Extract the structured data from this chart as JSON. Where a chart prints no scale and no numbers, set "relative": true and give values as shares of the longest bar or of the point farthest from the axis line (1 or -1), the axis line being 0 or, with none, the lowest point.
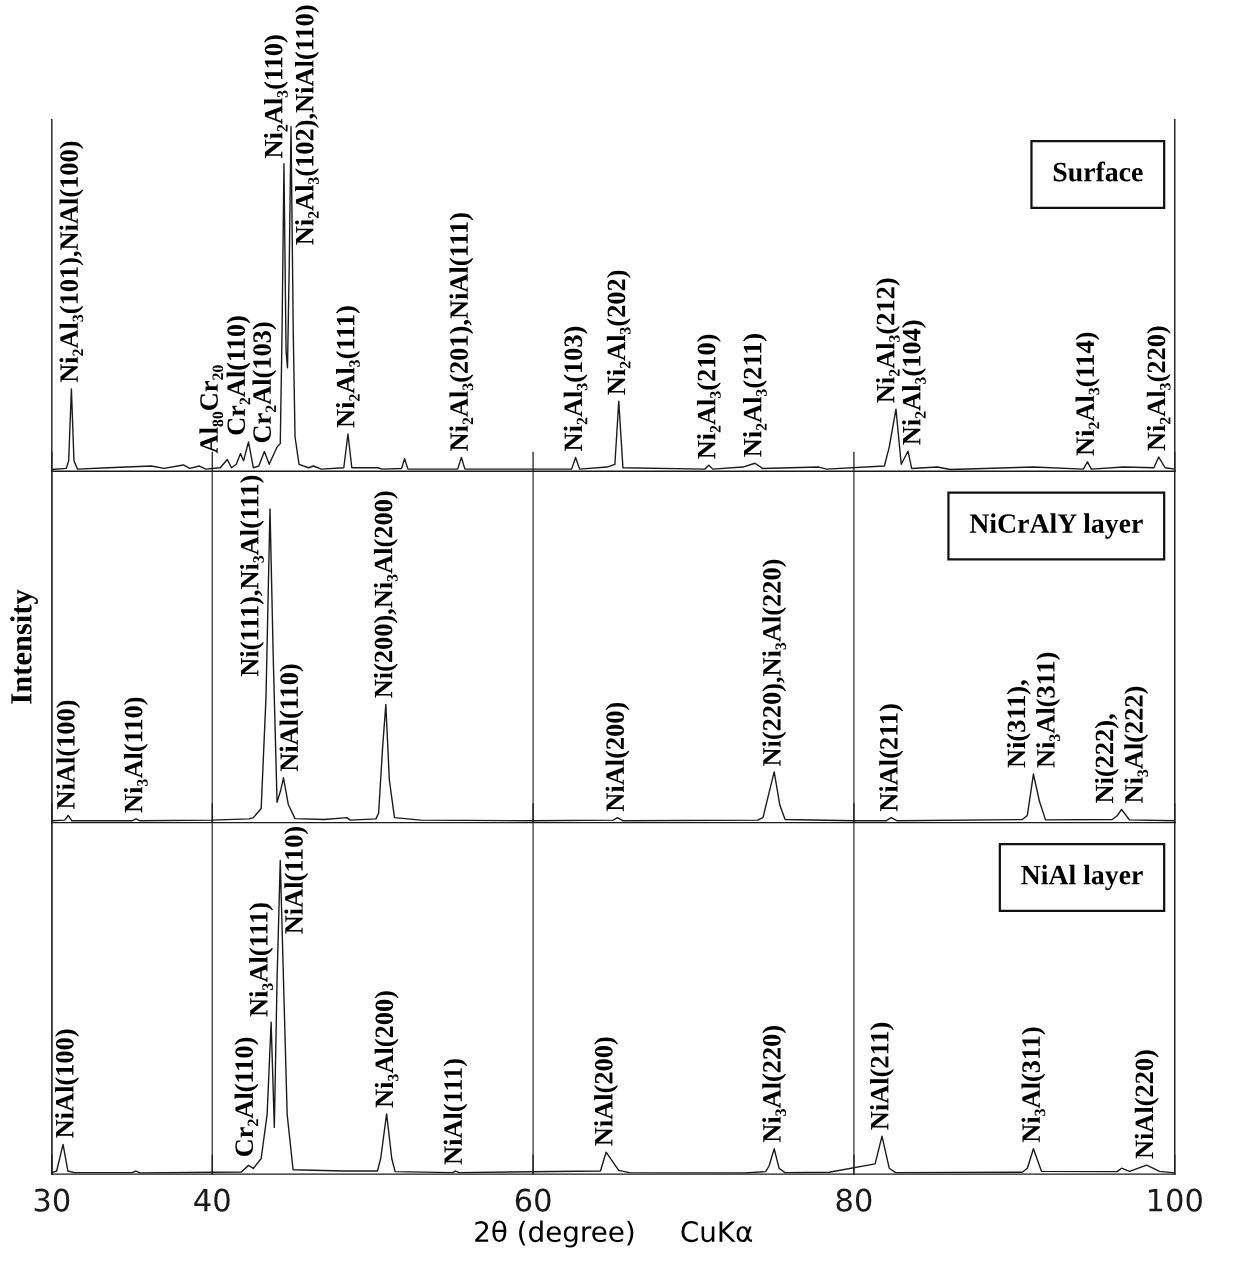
{
  "chart_data": [
    {
      "type": "line",
      "title": "Surface",
      "relative": true,
      "color": "#1a1a1a",
      "xlim": [
        30,
        100
      ],
      "xticks": [
        30,
        40,
        60,
        80,
        100
      ],
      "tick_labels": false,
      "x": [
        30.0,
        30.9,
        31.05,
        31.22,
        31.38,
        31.6,
        33.5,
        36.2,
        37.0,
        38.2,
        38.6,
        39.2,
        39.6,
        40.5,
        40.94,
        41.2,
        41.5,
        41.76,
        41.95,
        42.26,
        42.56,
        42.9,
        43.25,
        43.55,
        44.04,
        44.24,
        44.35,
        44.47,
        44.6,
        44.69,
        44.8,
        44.91,
        45.05,
        45.16,
        45.41,
        46.0,
        46.3,
        46.8,
        48.2,
        48.46,
        48.7,
        50.3,
        50.6,
        51.8,
        51.99,
        52.2,
        55.3,
        55.53,
        55.75,
        62.4,
        62.65,
        62.9,
        64.6,
        65.1,
        65.34,
        65.6,
        70.7,
        70.96,
        71.2,
        73.08,
        73.83,
        74.3,
        77.8,
        78.3,
        81.9,
        82.2,
        82.62,
        82.95,
        83.37,
        83.6,
        85.19,
        86.0,
        91.19,
        94.3,
        94.56,
        94.8,
        96.8,
        98.7,
        99.0,
        99.4,
        100.0
      ],
      "values": [
        0.005,
        0.008,
        0.03,
        0.239,
        0.03,
        0.006,
        0.01,
        0.015,
        0.008,
        0.018,
        0.008,
        0.015,
        0.006,
        0.01,
        0.034,
        0.01,
        0.02,
        0.051,
        0.03,
        0.085,
        0.01,
        0.015,
        0.057,
        0.02,
        0.07,
        0.08,
        0.4,
        0.892,
        0.35,
        0.3,
        0.6,
        1.0,
        0.4,
        0.1,
        0.02,
        0.01,
        0.015,
        0.006,
        0.01,
        0.108,
        0.01,
        0.01,
        0.006,
        0.008,
        0.036,
        0.006,
        0.006,
        0.04,
        0.006,
        0.006,
        0.04,
        0.006,
        0.012,
        0.02,
        0.203,
        0.01,
        0.006,
        0.017,
        0.006,
        0.012,
        0.023,
        0.008,
        0.012,
        0.006,
        0.015,
        0.07,
        0.18,
        0.02,
        0.058,
        0.008,
        0.012,
        0.005,
        0.012,
        0.006,
        0.027,
        0.006,
        0.012,
        0.01,
        0.041,
        0.01,
        0.006
      ],
      "annotations": [
        {
          "text": "Ni₂Al₃(101),NiAl(100)",
          "x": 31.22,
          "y": 0.239
        },
        {
          "text": "Al₈₀Cr₂₀",
          "x": 40.94,
          "y": 0.034
        },
        {
          "text": "Cr₂Al(110)",
          "x": 42.26,
          "y": 0.085
        },
        {
          "text": "Cr₂Al(103)",
          "x": 43.25,
          "y": 0.057
        },
        {
          "text": "Ni₂Al₃(110)",
          "x": 44.47,
          "y": 0.892
        },
        {
          "text": "Ni₂Al₃(102),NiAl(110)",
          "x": 44.91,
          "y": 1.0
        },
        {
          "text": "Ni₂Al₃(111)",
          "x": 48.46,
          "y": 0.108
        },
        {
          "text": "Ni₂Al₃(201),NiAl(111)",
          "x": 55.53,
          "y": 0.04
        },
        {
          "text": "Ni₂Al₃(103)",
          "x": 62.65,
          "y": 0.04
        },
        {
          "text": "Ni₂Al₃(202)",
          "x": 65.34,
          "y": 0.203
        },
        {
          "text": "Ni₂Al₃(210)",
          "x": 70.96,
          "y": 0.017
        },
        {
          "text": "Ni₂Al₃(211)",
          "x": 73.83,
          "y": 0.023
        },
        {
          "text": "Ni₂Al₃(212)",
          "x": 82.62,
          "y": 0.18
        },
        {
          "text": "Ni₂Al₃(104)",
          "x": 83.37,
          "y": 0.058
        },
        {
          "text": "Ni₂Al₃(114)",
          "x": 94.56,
          "y": 0.027
        },
        {
          "text": "Ni₂Al₃(220)",
          "x": 99.0,
          "y": 0.041
        }
      ]
    },
    {
      "type": "line",
      "title": "NiCrAlY layer",
      "ylabel": "Intensity",
      "relative": true,
      "color": "#1a1a1a",
      "xlim": [
        30,
        100
      ],
      "xticks": [
        30,
        40,
        60,
        80,
        100
      ],
      "tick_labels": false,
      "grid": "x",
      "x": [
        30.0,
        30.8,
        31.02,
        31.25,
        35.0,
        35.24,
        35.5,
        40.0,
        42.3,
        42.56,
        43.05,
        43.35,
        43.6,
        43.8,
        44.04,
        44.25,
        44.44,
        44.74,
        45.16,
        47.0,
        48.39,
        48.6,
        50.2,
        50.37,
        50.62,
        50.82,
        51.04,
        51.36,
        53.0,
        60.0,
        65.0,
        65.26,
        65.6,
        74.0,
        74.33,
        74.71,
        75.03,
        75.38,
        75.71,
        80.0,
        82.0,
        82.32,
        82.7,
        90.5,
        90.81,
        91.19,
        91.56,
        91.94,
        96.1,
        96.43,
        96.68,
        97.18,
        100.0
      ],
      "values": [
        0.006,
        0.008,
        0.023,
        0.006,
        0.006,
        0.012,
        0.006,
        0.008,
        0.012,
        0.016,
        0.045,
        0.4,
        1.0,
        0.53,
        0.065,
        0.1,
        0.143,
        0.058,
        0.013,
        0.01,
        0.016,
        0.008,
        0.012,
        0.03,
        0.24,
        0.377,
        0.136,
        0.016,
        0.008,
        0.006,
        0.008,
        0.016,
        0.006,
        0.008,
        0.016,
        0.096,
        0.162,
        0.056,
        0.01,
        0.006,
        0.006,
        0.016,
        0.006,
        0.01,
        0.023,
        0.155,
        0.069,
        0.009,
        0.01,
        0.023,
        0.042,
        0.009,
        0.006
      ],
      "annotations": [
        {
          "text": "NiAl(100)",
          "x": 31.02,
          "y": 0.023
        },
        {
          "text": "Ni₃Al(110)",
          "x": 35.24,
          "y": 0.012
        },
        {
          "text": "Ni(111),Ni₃Al(111)",
          "x": 43.6,
          "y": 1.0
        },
        {
          "text": "NiAl(110)",
          "x": 44.44,
          "y": 0.143
        },
        {
          "text": "Ni(200),Ni₃Al(200)",
          "x": 50.82,
          "y": 0.377
        },
        {
          "text": "NiAl(200)",
          "x": 65.26,
          "y": 0.016
        },
        {
          "text": "Ni(220),Ni₃Al(220)",
          "x": 75.03,
          "y": 0.162
        },
        {
          "text": "NiAl(211)",
          "x": 82.32,
          "y": 0.016
        },
        {
          "text": "Ni(311),\nNi₃Al(311)",
          "x": 91.19,
          "y": 0.155
        },
        {
          "text": "Ni(222),\nNi₃Al(222)",
          "x": 96.68,
          "y": 0.042
        }
      ]
    },
    {
      "type": "line",
      "title": "NiAl layer",
      "xlabel": "2θ (degree)     CuKα",
      "relative": true,
      "color": "#1a1a1a",
      "xlim": [
        30,
        100
      ],
      "xticks": [
        30,
        40,
        60,
        80,
        100
      ],
      "tick_labels": "x",
      "grid": "x",
      "x": [
        30.0,
        30.3,
        30.7,
        31.0,
        31.4,
        35.0,
        35.24,
        35.5,
        41.81,
        42.26,
        42.56,
        43.05,
        43.42,
        43.67,
        43.87,
        44.04,
        44.24,
        44.44,
        44.67,
        45.04,
        48.14,
        50.3,
        50.5,
        50.87,
        51.19,
        51.4,
        55.0,
        55.16,
        55.4,
        64.2,
        64.55,
        65.34,
        66.0,
        73.21,
        74.5,
        74.71,
        75.03,
        75.33,
        75.7,
        78.45,
        81.32,
        81.75,
        82.2,
        82.6,
        90.5,
        90.81,
        91.19,
        91.69,
        96.4,
        96.68,
        97.18,
        98.25,
        99.05,
        100.0
      ],
      "values": [
        0.005,
        0.01,
        0.095,
        0.01,
        0.005,
        0.005,
        0.01,
        0.004,
        0.007,
        0.028,
        0.018,
        0.05,
        0.19,
        0.484,
        0.149,
        0.62,
        1.0,
        0.62,
        0.19,
        0.014,
        0.01,
        0.01,
        0.05,
        0.192,
        0.05,
        0.008,
        0.005,
        0.01,
        0.005,
        0.01,
        0.07,
        0.012,
        0.005,
        0.004,
        0.008,
        0.026,
        0.081,
        0.019,
        0.005,
        0.006,
        0.033,
        0.121,
        0.019,
        0.005,
        0.006,
        0.019,
        0.081,
        0.009,
        0.008,
        0.019,
        0.009,
        0.029,
        0.009,
        0.004
      ],
      "annotations": [
        {
          "text": "NiAl(100)",
          "x": 30.7,
          "y": 0.095
        },
        {
          "text": "Cr₂Al(110)",
          "x": 42.26,
          "y": 0.028
        },
        {
          "text": "Ni₃Al(111)",
          "x": 43.67,
          "y": 0.484
        },
        {
          "text": "NiAl(110)",
          "x": 44.24,
          "y": 1.0
        },
        {
          "text": "Ni₃Al(200)",
          "x": 50.87,
          "y": 0.192
        },
        {
          "text": "NiAl(111)",
          "x": 55.16,
          "y": 0.01
        },
        {
          "text": "NiAl(200)",
          "x": 64.55,
          "y": 0.07
        },
        {
          "text": "Ni₃Al(220)",
          "x": 75.03,
          "y": 0.081
        },
        {
          "text": "NiAl(211)",
          "x": 81.75,
          "y": 0.121
        },
        {
          "text": "Ni₃Al(311)",
          "x": 91.19,
          "y": 0.081
        },
        {
          "text": "NiAl(220)",
          "x": 98.25,
          "y": 0.029
        }
      ]
    }
  ]
}
